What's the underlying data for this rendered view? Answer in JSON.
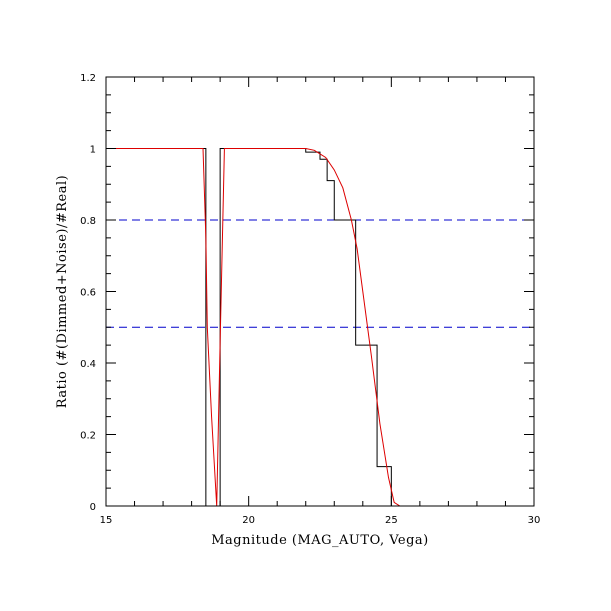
{
  "chart_data": {
    "type": "line",
    "title": "",
    "xlabel": "Magnitude (MAG_AUTO, Vega)",
    "ylabel": "Ratio (#(Dimmed+Noise)/#Real)",
    "xlim": [
      15,
      30
    ],
    "ylim": [
      0,
      1.2
    ],
    "x_ticks": [
      15,
      20,
      25,
      30
    ],
    "x_tick_labels": [
      "15",
      "20",
      "25",
      "30"
    ],
    "y_ticks": [
      0,
      0.2,
      0.4,
      0.6,
      0.8,
      1.0,
      1.2
    ],
    "y_tick_labels": [
      "0",
      "0.2",
      "0.4",
      "0.6",
      "0.8",
      "1",
      "1.2"
    ],
    "grid": false,
    "reference_lines": [
      {
        "y": 0.8,
        "color": "#0000cc",
        "style": "dashed"
      },
      {
        "y": 0.5,
        "color": "#0000cc",
        "style": "dashed"
      }
    ],
    "series": [
      {
        "kind": "histogram",
        "color": "#000000",
        "bin_edges": [
          15.0,
          18.5,
          18.75,
          19.0,
          19.25,
          22.0,
          22.5,
          22.75,
          23.0,
          23.5,
          23.75,
          24.0,
          24.5,
          25.0,
          25.25,
          30.0
        ],
        "values": [
          1.0,
          0.0,
          0.0,
          1.0,
          1.0,
          0.99,
          0.97,
          0.91,
          0.8,
          0.8,
          0.45,
          0.45,
          0.11,
          0.0,
          0.0
        ]
      },
      {
        "kind": "line",
        "color": "#dd0000",
        "x": [
          15.0,
          18.4,
          18.5,
          18.55,
          18.7,
          18.88,
          19.0,
          19.15,
          19.3,
          22.0,
          22.3,
          22.7,
          23.0,
          23.3,
          23.6,
          23.8,
          24.0,
          24.3,
          24.6,
          24.9,
          25.1,
          25.3,
          30.0
        ],
        "y": [
          1.0,
          1.0,
          0.75,
          0.5,
          0.25,
          0.0,
          0.46,
          1.0,
          1.0,
          1.0,
          0.995,
          0.975,
          0.94,
          0.89,
          0.8,
          0.72,
          0.6,
          0.42,
          0.23,
          0.08,
          0.01,
          0.0,
          0.0
        ]
      }
    ]
  }
}
